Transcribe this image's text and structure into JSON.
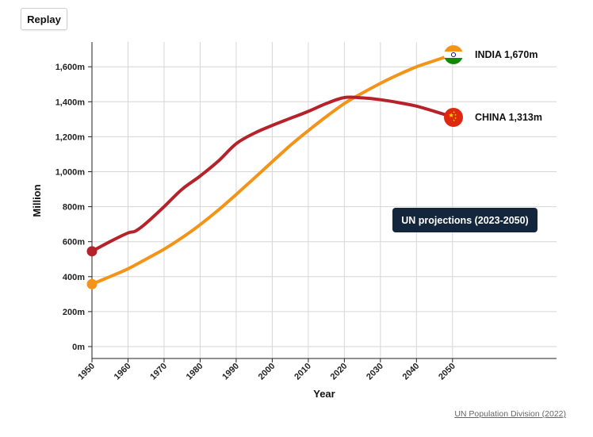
{
  "replay_label": "Replay",
  "source_label": "UN Population Division (2022)",
  "annotation": "UN projections (2023-2050)",
  "colors": {
    "china": "#b5222a",
    "india": "#f39419",
    "grid": "#d6d6d6",
    "axis": "#222222"
  },
  "chart_data": {
    "type": "line",
    "title": "",
    "xlabel": "Year",
    "ylabel": "Million",
    "xlim": [
      1950,
      2078
    ],
    "ylim": [
      -50,
      1750
    ],
    "x_ticks": [
      1950,
      1960,
      1970,
      1980,
      1990,
      2000,
      2010,
      2020,
      2030,
      2040,
      2050
    ],
    "x_tick_labels": [
      "1950",
      "1960",
      "1970",
      "1980",
      "1990",
      "2000",
      "2010",
      "2020",
      "2030",
      "2040",
      "2050"
    ],
    "y_ticks": [
      0,
      200,
      400,
      600,
      800,
      1000,
      1200,
      1400,
      1600
    ],
    "y_tick_labels": [
      "0m",
      "200m",
      "400m",
      "600m",
      "800m",
      "1,000m",
      "1,200m",
      "1,400m",
      "1,600m"
    ],
    "grid": true,
    "series": [
      {
        "name": "India",
        "end_label": "INDIA 1,670m",
        "x": [
          1950,
          1955,
          1960,
          1965,
          1970,
          1975,
          1980,
          1985,
          1990,
          1995,
          2000,
          2005,
          2010,
          2015,
          2020,
          2025,
          2030,
          2035,
          2040,
          2045,
          2050
        ],
        "y": [
          357,
          400,
          445,
          500,
          557,
          623,
          697,
          780,
          870,
          963,
          1057,
          1150,
          1235,
          1315,
          1390,
          1450,
          1505,
          1555,
          1600,
          1635,
          1670
        ]
      },
      {
        "name": "China",
        "end_label": "CHINA 1,313m",
        "x": [
          1950,
          1955,
          1960,
          1962,
          1965,
          1970,
          1975,
          1980,
          1985,
          1990,
          1995,
          2000,
          2005,
          2010,
          2015,
          2020,
          2025,
          2030,
          2035,
          2040,
          2045,
          2050
        ],
        "y": [
          545,
          600,
          650,
          660,
          705,
          800,
          900,
          975,
          1060,
          1160,
          1220,
          1265,
          1305,
          1345,
          1390,
          1424,
          1422,
          1412,
          1395,
          1375,
          1345,
          1313
        ]
      }
    ]
  }
}
